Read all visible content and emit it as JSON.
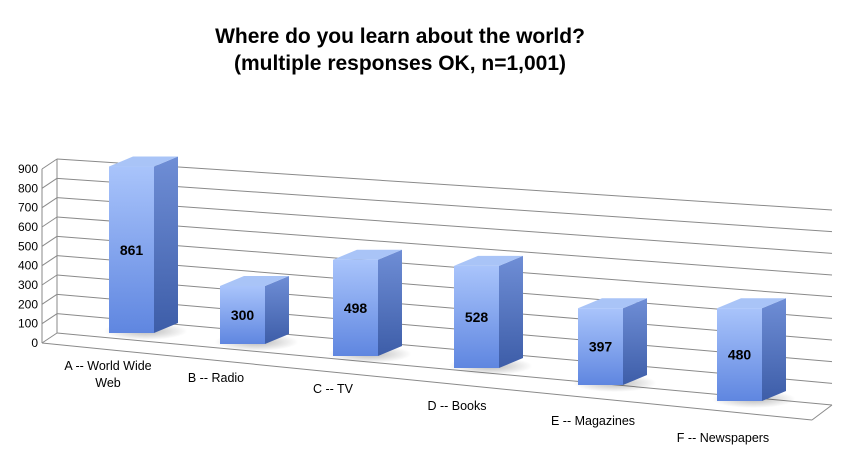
{
  "chart_data": {
    "type": "bar",
    "title": "Where do you learn about the world?",
    "subtitle": "(multiple responses OK, n=1,001)",
    "categories": [
      "A -- World Wide Web",
      "B -- Radio",
      "C -- TV",
      "D -- Books",
      "E -- Magazines",
      "F -- Newspapers"
    ],
    "values": [
      861,
      300,
      498,
      528,
      397,
      480
    ],
    "ylim": [
      0,
      900
    ],
    "yticks": [
      0,
      100,
      200,
      300,
      400,
      500,
      600,
      700,
      800,
      900
    ],
    "grid": true,
    "legend": "none",
    "bar_color": "#7fa4ec",
    "bar_top_color": "#a9c4f7",
    "bar_side_color": "#4e6fb8"
  }
}
